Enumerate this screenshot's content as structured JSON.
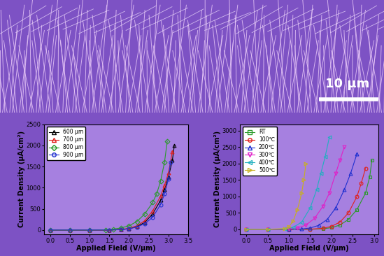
{
  "scale_bar": "10 μm",
  "chart_data": [
    {
      "type": "line",
      "x_label": "Applied Field (V/μm)",
      "y_label": "Current Density (μA/cm²)",
      "xlim": [
        -0.15,
        3.5
      ],
      "xticks": [
        0.0,
        0.5,
        1.0,
        1.5,
        2.0,
        2.5,
        3.0,
        3.5
      ],
      "ylim": [
        -100,
        2500
      ],
      "yticks": [
        0,
        500,
        1000,
        1500,
        2000,
        2500
      ],
      "legend": "upper left",
      "series": [
        {
          "name": "600 μm",
          "color": "#000000",
          "marker": "triangle_up",
          "x": [
            0.0,
            0.5,
            1.0,
            1.5,
            1.8,
            2.0,
            2.2,
            2.4,
            2.6,
            2.8,
            2.9,
            3.0,
            3.1,
            3.15
          ],
          "values": [
            0,
            0,
            0,
            0,
            10,
            30,
            80,
            180,
            380,
            700,
            950,
            1250,
            1650,
            2000
          ]
        },
        {
          "name": "700 μm",
          "color": "#e0201c",
          "marker": "triangle_up",
          "x": [
            0.0,
            0.5,
            1.0,
            1.5,
            1.8,
            2.0,
            2.2,
            2.4,
            2.6,
            2.8,
            2.9,
            3.0,
            3.1
          ],
          "values": [
            0,
            0,
            0,
            0,
            15,
            40,
            100,
            220,
            450,
            800,
            1050,
            1350,
            1850
          ]
        },
        {
          "name": "800 μm",
          "color": "#2a9a2a",
          "marker": "diamond",
          "x": [
            0.0,
            0.5,
            1.0,
            1.4,
            1.6,
            1.8,
            2.0,
            2.2,
            2.4,
            2.6,
            2.7,
            2.8,
            2.9,
            2.97
          ],
          "values": [
            0,
            0,
            0,
            5,
            20,
            50,
            100,
            200,
            380,
            650,
            850,
            1150,
            1600,
            2100
          ]
        },
        {
          "name": "900 μm",
          "color": "#2030d0",
          "marker": "circle",
          "x": [
            0.0,
            0.5,
            1.0,
            1.5,
            1.8,
            2.0,
            2.2,
            2.4,
            2.6,
            2.8,
            2.9,
            3.0,
            3.05
          ],
          "values": [
            0,
            0,
            0,
            0,
            10,
            30,
            70,
            150,
            300,
            600,
            850,
            1200,
            1600
          ]
        }
      ]
    },
    {
      "type": "line",
      "x_label": "Applied Field (V/μm)",
      "y_label": "Current Density (μA/cm²)",
      "xlim": [
        -0.15,
        3.1
      ],
      "xticks": [
        0.0,
        0.5,
        1.0,
        1.5,
        2.0,
        2.5,
        3.0
      ],
      "ylim": [
        -150,
        3200
      ],
      "yticks": [
        0,
        500,
        1000,
        1500,
        2000,
        2500,
        3000
      ],
      "legend": "upper left",
      "series": [
        {
          "name": "RT",
          "color": "#2a9a2a",
          "marker": "square",
          "x": [
            0.0,
            0.5,
            1.0,
            1.5,
            1.8,
            2.0,
            2.2,
            2.4,
            2.6,
            2.8,
            2.9,
            2.95
          ],
          "values": [
            0,
            0,
            0,
            0,
            15,
            50,
            130,
            300,
            600,
            1100,
            1600,
            2100
          ]
        },
        {
          "name": "100℃",
          "color": "#e0201c",
          "marker": "circle",
          "x": [
            0.0,
            0.5,
            1.0,
            1.5,
            1.8,
            2.0,
            2.2,
            2.4,
            2.6,
            2.7,
            2.8
          ],
          "values": [
            0,
            0,
            0,
            5,
            30,
            90,
            220,
            500,
            1000,
            1400,
            1850
          ]
        },
        {
          "name": "200℃",
          "color": "#2030d0",
          "marker": "triangle_up",
          "x": [
            0.0,
            0.5,
            1.0,
            1.3,
            1.5,
            1.7,
            1.9,
            2.1,
            2.3,
            2.45,
            2.6
          ],
          "values": [
            0,
            0,
            0,
            10,
            40,
            120,
            300,
            650,
            1200,
            1700,
            2300
          ]
        },
        {
          "name": "300℃",
          "color": "#e020c8",
          "marker": "triangle_down",
          "x": [
            0.0,
            0.5,
            1.0,
            1.2,
            1.4,
            1.6,
            1.8,
            1.95,
            2.1,
            2.2,
            2.3
          ],
          "values": [
            0,
            0,
            10,
            40,
            130,
            330,
            700,
            1100,
            1700,
            2100,
            2500
          ]
        },
        {
          "name": "400℃",
          "color": "#20b0c0",
          "marker": "triangle_left",
          "x": [
            0.0,
            0.5,
            0.9,
            1.1,
            1.3,
            1.5,
            1.65,
            1.75,
            1.85,
            1.95
          ],
          "values": [
            0,
            0,
            10,
            60,
            220,
            650,
            1200,
            1700,
            2200,
            2800
          ]
        },
        {
          "name": "500℃",
          "color": "#c8b020",
          "marker": "triangle_right",
          "x": [
            0.0,
            0.5,
            0.9,
            1.0,
            1.1,
            1.2,
            1.3,
            1.35,
            1.4
          ],
          "values": [
            0,
            0,
            20,
            80,
            250,
            600,
            1100,
            1500,
            2000
          ]
        }
      ]
    }
  ]
}
